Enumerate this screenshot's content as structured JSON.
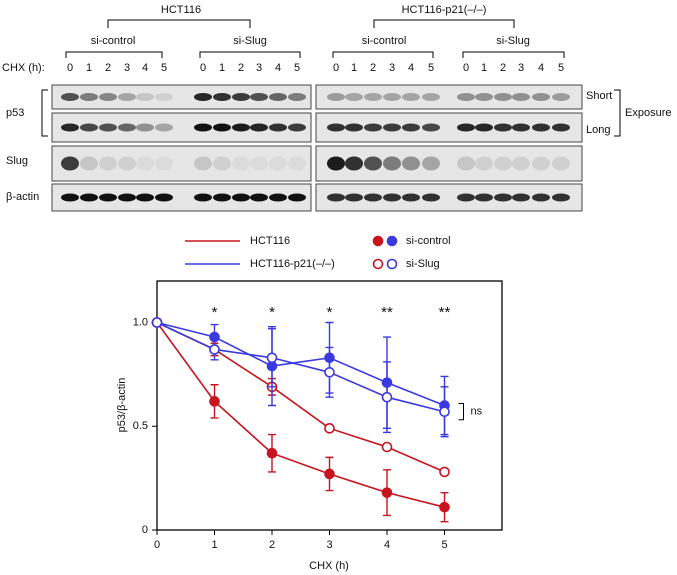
{
  "blot": {
    "cell_lines": [
      "HCT116",
      "HCT116-p21(–/–)"
    ],
    "treatments": [
      "si-control",
      "si-Slug"
    ],
    "time_label": "CHX (h):",
    "lanes": [
      "0",
      "1",
      "2",
      "3",
      "4",
      "5"
    ],
    "rows": [
      "p53",
      "Slug",
      "β-actin"
    ],
    "exposures": [
      "Short",
      "Long"
    ],
    "exposure_label": "Exposure"
  },
  "chart_data": {
    "type": "line",
    "x": [
      0,
      1,
      2,
      3,
      4,
      5
    ],
    "xlabel": "CHX (h)",
    "ylabel": "p53/β-actin",
    "xlim": [
      0,
      6
    ],
    "ylim": [
      0,
      1.2
    ],
    "xticks": [
      0,
      1,
      2,
      3,
      4,
      5
    ],
    "yticks": [
      0,
      0.5,
      {
        "value": 1,
        "label": "1.0"
      }
    ],
    "legend": {
      "lines": [
        {
          "label": "HCT116",
          "color": "#c8141e"
        },
        {
          "label": "HCT116-p21(–/–)",
          "color": "#3a3ae0"
        }
      ],
      "markers": [
        {
          "label": "si-control",
          "filled": true
        },
        {
          "label": "si-Slug",
          "filled": false
        }
      ]
    },
    "series": [
      {
        "color": "#c8141e",
        "filled": true,
        "values": [
          1,
          0.62,
          0.37,
          0.27,
          0.18,
          0.11
        ],
        "errors": [
          0,
          0.08,
          0.09,
          0.08,
          0.11,
          0.07
        ]
      },
      {
        "color": "#c8141e",
        "filled": false,
        "values": [
          1,
          0.87,
          0.69,
          0.49,
          0.4,
          0.28
        ],
        "errors": [
          0,
          0.03,
          0.04,
          0.01,
          0.01,
          0.01
        ]
      },
      {
        "color": "#3a3ae0",
        "filled": true,
        "values": [
          1,
          0.93,
          0.79,
          0.83,
          0.71,
          0.6
        ],
        "errors": [
          0,
          0.06,
          0.19,
          0.17,
          0.22,
          0.14
        ]
      },
      {
        "color": "#3a3ae0",
        "filled": false,
        "values": [
          1,
          0.87,
          0.83,
          0.76,
          0.64,
          0.57
        ],
        "errors": [
          0,
          0.05,
          0.14,
          0.12,
          0.17,
          0.12
        ]
      }
    ],
    "annotations": [
      {
        "x": 1,
        "text": "*",
        "color": "#e03030"
      },
      {
        "x": 2,
        "text": "*",
        "color": "#e03030"
      },
      {
        "x": 3,
        "text": "*",
        "color": "#e03030"
      },
      {
        "x": 4,
        "text": "**",
        "color": "#e03030"
      },
      {
        "x": 5,
        "text": "**",
        "color": "#e03030"
      }
    ],
    "ns_label": "ns"
  }
}
